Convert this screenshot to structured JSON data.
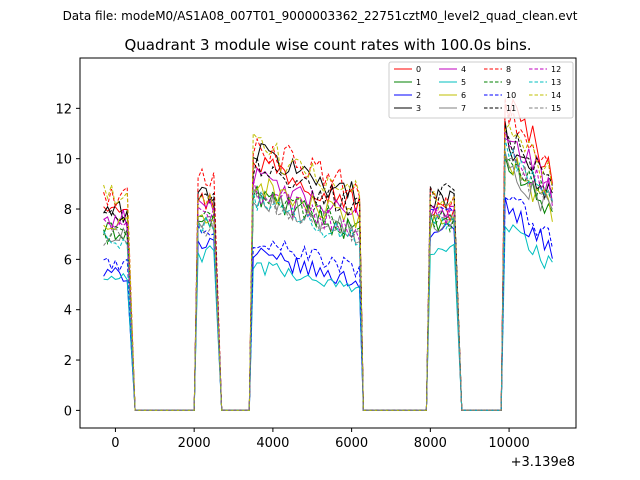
{
  "chart_data": {
    "type": "line",
    "suptitle": "Data file: modeM0/AS1A08_007T01_9000003362_22751cztM0_level2_quad_clean.evt",
    "title": "Quadrant 3 module wise count rates with 100.0s bins.",
    "xlabel": "",
    "ylabel": "",
    "x_offset_label": "+3.139e8",
    "xlim": [
      -900,
      11700
    ],
    "ylim": [
      -0.7,
      14.0
    ],
    "xticks": [
      0,
      2000,
      4000,
      6000,
      8000,
      10000
    ],
    "xtick_labels": [
      "0",
      "2000",
      "4000",
      "6000",
      "8000",
      "10000"
    ],
    "yticks": [
      0,
      2,
      4,
      6,
      8,
      10,
      12
    ],
    "ytick_labels": [
      "0",
      "2",
      "4",
      "6",
      "8",
      "10",
      "12"
    ],
    "legend_position": "top-right",
    "segments": [
      {
        "x_start": -300,
        "x_end": 300,
        "drop_to": 500,
        "rise_from": 2000
      },
      {
        "x_start": 2100,
        "x_end": 2500,
        "drop_to": 2700,
        "rise_from": 3400
      },
      {
        "x_start": 3500,
        "x_end": 6200,
        "drop_to": 6300,
        "rise_from": 7900
      },
      {
        "x_start": 8000,
        "x_end": 8600,
        "drop_to": 8800,
        "rise_from": 9800
      },
      {
        "x_start": 9900,
        "x_end": 11100,
        "drop_to": null,
        "rise_from": null
      }
    ],
    "series": [
      {
        "name": "0",
        "color": "#ff0000",
        "style": "solid",
        "levels": [
          8.3,
          8.3,
          10.0,
          7.9,
          12.3
        ]
      },
      {
        "name": "1",
        "color": "#008000",
        "style": "solid",
        "levels": [
          7.1,
          7.5,
          8.6,
          7.4,
          10.0
        ]
      },
      {
        "name": "2",
        "color": "#0000ff",
        "style": "solid",
        "levels": [
          5.4,
          6.7,
          6.2,
          7.1,
          8.2
        ]
      },
      {
        "name": "3",
        "color": "#000000",
        "style": "solid",
        "levels": [
          7.9,
          8.6,
          10.3,
          8.5,
          10.9
        ]
      },
      {
        "name": "4",
        "color": "#bf00bf",
        "style": "solid",
        "levels": [
          7.6,
          8.3,
          9.2,
          8.0,
          11.2
        ]
      },
      {
        "name": "5",
        "color": "#00bfbf",
        "style": "solid",
        "levels": [
          5.2,
          6.2,
          5.8,
          6.5,
          7.4
        ]
      },
      {
        "name": "6",
        "color": "#bfbf00",
        "style": "solid",
        "levels": [
          7.3,
          7.6,
          9.0,
          7.6,
          10.1
        ]
      },
      {
        "name": "7",
        "color": "#808080",
        "style": "solid",
        "levels": [
          7.0,
          7.4,
          8.6,
          7.5,
          10.0
        ]
      },
      {
        "name": "8",
        "color": "#ff0000",
        "style": "dashed",
        "levels": [
          8.5,
          9.1,
          10.6,
          8.4,
          11.8
        ]
      },
      {
        "name": "9",
        "color": "#008000",
        "style": "dashed",
        "levels": [
          7.0,
          7.6,
          8.8,
          7.5,
          10.3
        ]
      },
      {
        "name": "10",
        "color": "#0000ff",
        "style": "dashed",
        "levels": [
          5.8,
          7.2,
          6.8,
          7.7,
          8.6
        ]
      },
      {
        "name": "11",
        "color": "#000000",
        "style": "dashed",
        "levels": [
          7.6,
          8.2,
          9.8,
          8.6,
          11.1
        ]
      },
      {
        "name": "12",
        "color": "#bf00bf",
        "style": "dashed",
        "levels": [
          7.3,
          7.9,
          8.7,
          7.8,
          10.8
        ]
      },
      {
        "name": "13",
        "color": "#00bfbf",
        "style": "dashed",
        "levels": [
          6.8,
          7.3,
          8.3,
          7.5,
          10.3
        ]
      },
      {
        "name": "14",
        "color": "#bfbf00",
        "style": "dashed",
        "levels": [
          8.5,
          8.2,
          10.5,
          8.3,
          11.6
        ]
      },
      {
        "name": "15",
        "color": "#808080",
        "style": "dashed",
        "levels": [
          6.9,
          7.3,
          8.5,
          7.7,
          10.2
        ]
      }
    ]
  }
}
